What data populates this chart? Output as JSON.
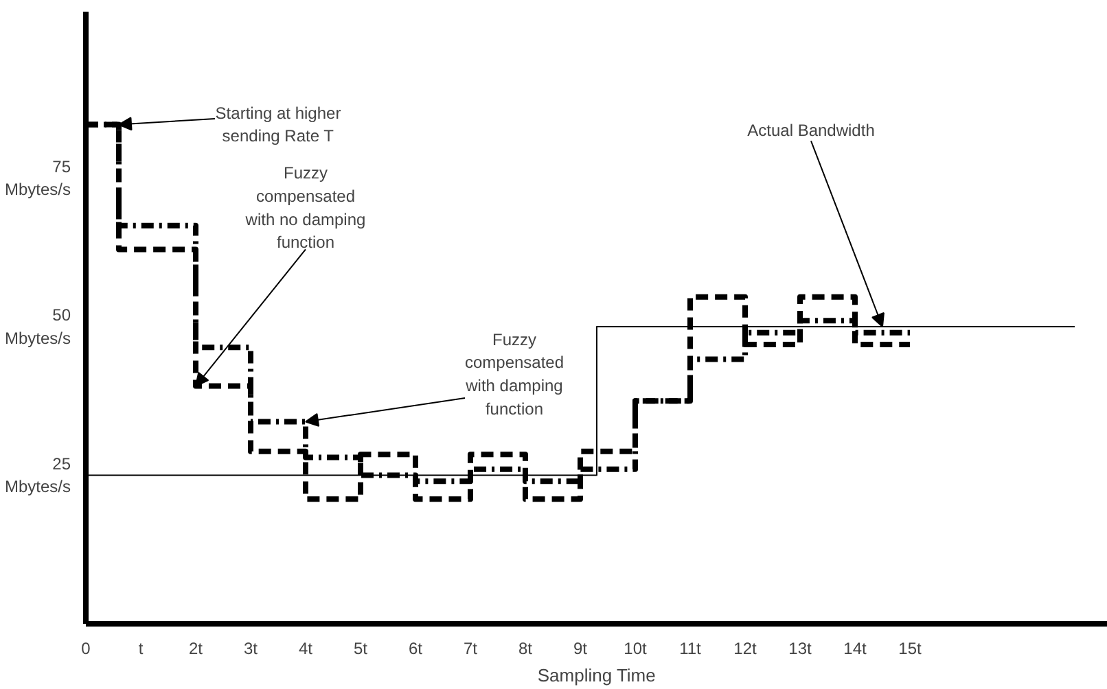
{
  "chart_data": {
    "type": "step",
    "xlabel": "Sampling Time",
    "xlim": [
      0,
      18.6
    ],
    "ylim": [
      0,
      103
    ],
    "xticks": [
      0,
      {
        "value": 1,
        "label": "t"
      },
      {
        "value": 2,
        "label": "2t"
      },
      {
        "value": 3,
        "label": "3t"
      },
      {
        "value": 4,
        "label": "4t"
      },
      {
        "value": 5,
        "label": "5t"
      },
      {
        "value": 6,
        "label": "6t"
      },
      {
        "value": 7,
        "label": "7t"
      },
      {
        "value": 8,
        "label": "8t"
      },
      {
        "value": 9,
        "label": "9t"
      },
      {
        "value": 10,
        "label": "10t"
      },
      {
        "value": 11,
        "label": "11t"
      },
      {
        "value": 12,
        "label": "12t"
      },
      {
        "value": 13,
        "label": "13t"
      },
      {
        "value": 14,
        "label": "14t"
      },
      {
        "value": 15,
        "label": "15t"
      }
    ],
    "yticks": [
      {
        "value": 25,
        "label": "25\nMbytes/s"
      },
      {
        "value": 50,
        "label": "50\nMbytes/s"
      },
      {
        "value": 75,
        "label": "75\nMbytes/s"
      }
    ],
    "grid": false,
    "series": [
      {
        "color": "#000000",
        "line_style": "dashed",
        "x": [
          0,
          0.6,
          2,
          3,
          4,
          5,
          6,
          7,
          8,
          9,
          10,
          11,
          12,
          13,
          14,
          15
        ],
        "values": [
          84,
          63,
          40,
          29,
          21,
          28.5,
          21,
          28.5,
          21,
          29,
          37.5,
          55,
          47,
          55,
          47,
          47
        ]
      },
      {
        "color": "#000000",
        "line_style": "dashdot",
        "x": [
          0,
          0.6,
          2,
          3,
          4,
          5,
          6,
          7,
          8,
          9,
          10,
          11,
          12,
          13,
          14,
          15
        ],
        "values": [
          84,
          67,
          46.5,
          34,
          28,
          25,
          24,
          26,
          24,
          26,
          37.5,
          44.5,
          49,
          51,
          49,
          49
        ]
      },
      {
        "color": "#000000",
        "line_style": "solid",
        "x": [
          0,
          9.3,
          18
        ],
        "values": [
          25,
          50,
          50
        ]
      }
    ],
    "annotations": [
      {
        "text": "Starting at higher\nsending Rate T",
        "x": 0.6,
        "y": 84
      },
      {
        "text": "Fuzzy\ncompensated\nwith no damping\nfunction",
        "x": 2,
        "y": 40
      },
      {
        "text": "Fuzzy\ncompensated\nwith damping\nfunction",
        "x": 4,
        "y": 34
      },
      {
        "text": "Actual Bandwidth",
        "x": 14.5,
        "y": 50
      }
    ]
  }
}
